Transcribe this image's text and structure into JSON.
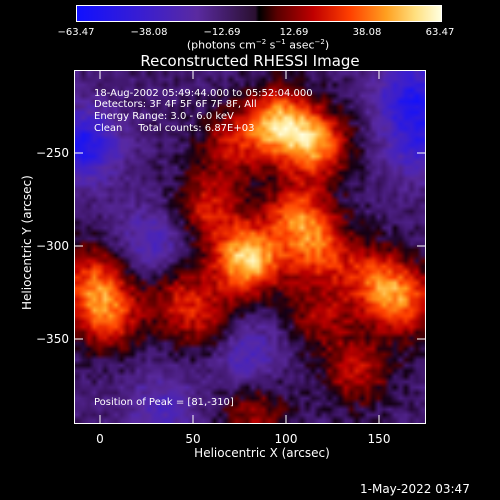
{
  "colorbar": {
    "ticks": [
      "−63.47",
      "−38.08",
      "−12.69",
      "12.69",
      "38.08",
      "63.47"
    ],
    "units_prefix": "(photons cm",
    "units_sup1": "−2",
    "units_mid": " s",
    "units_sup2": "−1",
    "units_mid2": " asec",
    "units_sup3": "−2",
    "units_suffix": ")"
  },
  "title": "Reconstructed RHESSI Image",
  "info": {
    "time_range": "18-Aug-2002 05:49:44.000 to 05:52:04.000",
    "detectors": "Detectors: 3F 4F 5F 6F 7F 8F, All",
    "energy_range": "Energy Range: 3.0 - 6.0 keV",
    "method_counts": "Clean     Total counts: 6.87E+03",
    "peak": "Position of Peak = [81,-310]"
  },
  "axes": {
    "xlabel": "Heliocentric X (arcsec)",
    "ylabel": "Heliocentric Y (arcsec)",
    "xticks": [
      "0",
      "50",
      "100",
      "150"
    ],
    "yticks": [
      "−250",
      "−300",
      "−350"
    ]
  },
  "timestamp": "1-May-2022 03:47",
  "chart_data": {
    "type": "heatmap",
    "title": "Reconstructed RHESSI Image",
    "xlabel": "Heliocentric X (arcsec)",
    "ylabel": "Heliocentric Y (arcsec)",
    "xlim": [
      -12,
      177
    ],
    "ylim": [
      -398,
      -208
    ],
    "colorbar_range": [
      -63.47,
      63.47
    ],
    "peak": [
      81,
      -310
    ],
    "sources": [
      {
        "x": 81,
        "y": -310,
        "value": 63.47
      },
      {
        "x": 98,
        "y": -236,
        "value": 55
      },
      {
        "x": 118,
        "y": -248,
        "value": 48
      },
      {
        "x": 108,
        "y": -286,
        "value": 40
      },
      {
        "x": 120,
        "y": -305,
        "value": 36
      },
      {
        "x": 60,
        "y": -282,
        "value": 32
      },
      {
        "x": 72,
        "y": -248,
        "value": 28
      },
      {
        "x": -3,
        "y": -320,
        "value": 35
      },
      {
        "x": 5,
        "y": -340,
        "value": 42
      },
      {
        "x": 165,
        "y": -333,
        "value": 40
      },
      {
        "x": 150,
        "y": -320,
        "value": 35
      },
      {
        "x": 140,
        "y": -370,
        "value": 30
      },
      {
        "x": 45,
        "y": -330,
        "value": 26
      },
      {
        "x": 85,
        "y": -393,
        "value": 24
      },
      {
        "x": 60,
        "y": -345,
        "value": 22
      },
      {
        "x": 120,
        "y": -340,
        "value": 24
      }
    ],
    "negative_regions": [
      {
        "x": -8,
        "y": -248,
        "value": -45
      },
      {
        "x": 170,
        "y": -222,
        "value": -40
      },
      {
        "x": 175,
        "y": -248,
        "value": -30
      },
      {
        "x": 30,
        "y": -300,
        "value": -22
      },
      {
        "x": 80,
        "y": -360,
        "value": -25
      },
      {
        "x": 35,
        "y": -390,
        "value": -20
      }
    ]
  }
}
